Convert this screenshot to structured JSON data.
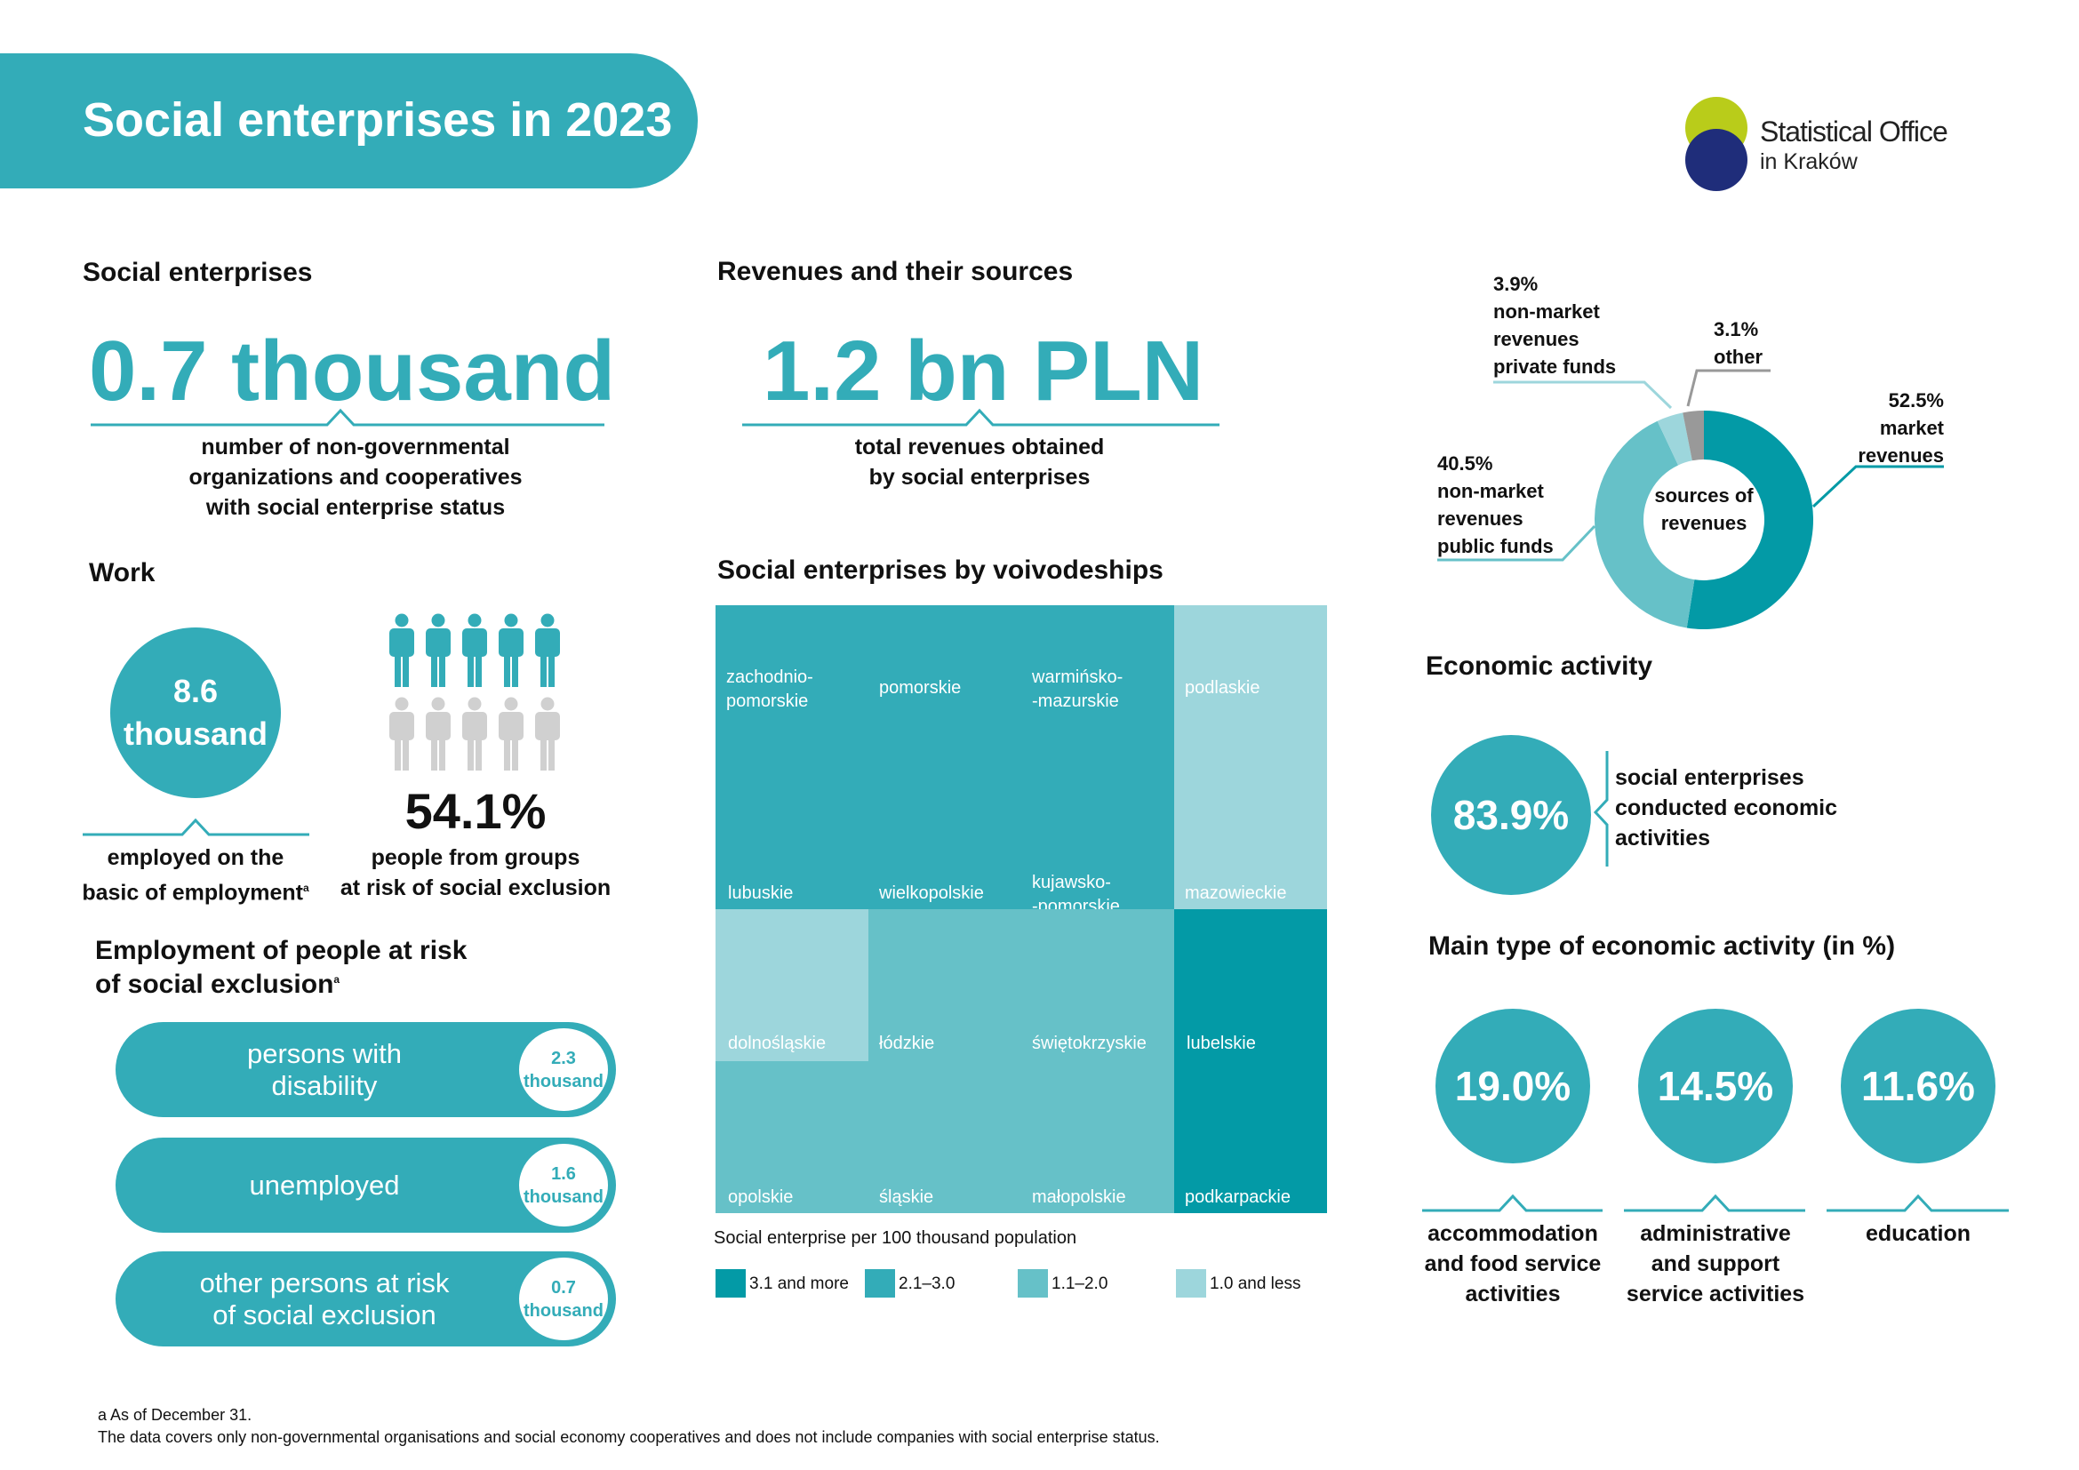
{
  "title": "Social enterprises in 2023",
  "logo": {
    "line1": "Statistical Office",
    "line2": "in Kraków"
  },
  "social": {
    "heading": "Social enterprises",
    "value": "0.7 thousand",
    "desc": [
      "number of non-governmental",
      "organizations and cooperatives",
      "with social enterprise status"
    ]
  },
  "work": {
    "heading": "Work",
    "circle_value": "8.6",
    "circle_unit": "thousand",
    "employed": [
      "employed on the",
      "basic of employment"
    ],
    "footnote_mark": "a",
    "percent": "54.1%",
    "percent_value": 54.1,
    "people": [
      "people from groups",
      "at risk of social exclusion"
    ]
  },
  "risk": {
    "heading": [
      "Employment of people at risk",
      "of social exclusion"
    ],
    "footnote_mark": "a",
    "items": [
      {
        "label": [
          "persons with",
          "disability"
        ],
        "value": "2.3",
        "unit": "thousand"
      },
      {
        "label": [
          "unemployed"
        ],
        "value": "1.6",
        "unit": "thousand"
      },
      {
        "label": [
          "other persons at risk",
          "of social exclusion"
        ],
        "value": "0.7",
        "unit": "thousand"
      }
    ]
  },
  "revenues": {
    "heading": "Revenues and their sources",
    "value": "1.2 bn PLN",
    "desc": [
      "total revenues obtained",
      "by social enterprises"
    ]
  },
  "voivodeships": {
    "heading": "Social enterprises by voivodeships",
    "legend_title": "Social enterprise per 100 thousand population",
    "legend": [
      {
        "label": "3.1 and more",
        "color": "#039aa6"
      },
      {
        "label": "2.1–3.0",
        "color": "#33acb8"
      },
      {
        "label": "1.1–2.0",
        "color": "#66c1c8"
      },
      {
        "label": "1.0 and less",
        "color": "#9dd6dc"
      }
    ],
    "cells": [
      {
        "name": "zachodnio-\npomorskie",
        "class": 1
      },
      {
        "name": "pomorskie",
        "class": 1
      },
      {
        "name": "warmińsko-\n-mazurskie",
        "class": 1
      },
      {
        "name": "podlaskie",
        "class": 3
      },
      {
        "name": "lubuskie",
        "class": 1
      },
      {
        "name": "wielkopolskie",
        "class": 1
      },
      {
        "name": "kujawsko-\n-pomorskie",
        "class": 1
      },
      {
        "name": "mazowieckie",
        "class": 3
      },
      {
        "name": "dolnośląskie",
        "class": 3
      },
      {
        "name": "łódzkie",
        "class": 2
      },
      {
        "name": "świętokrzyskie",
        "class": 2
      },
      {
        "name": "lubelskie",
        "class": 0
      },
      {
        "name": "opolskie",
        "class": 2
      },
      {
        "name": "śląskie",
        "class": 2
      },
      {
        "name": "małopolskie",
        "class": 2
      },
      {
        "name": "podkarpackie",
        "class": 0
      }
    ]
  },
  "chart_data": {
    "type": "pie",
    "center_label": "sources of revenues",
    "slices": [
      {
        "name": "market revenues",
        "value": 52.5,
        "label": "52.5%",
        "color": "#039aa6"
      },
      {
        "name": "non-market revenues public funds",
        "value": 40.5,
        "label": "40.5%",
        "color": "#66c1c8"
      },
      {
        "name": "non-market revenues private funds",
        "value": 3.9,
        "label": "3.9%",
        "color": "#9dd6dc"
      },
      {
        "name": "other",
        "value": 3.1,
        "label": "3.1%",
        "color": "#999999"
      }
    ]
  },
  "donut_labels": {
    "market": [
      "52.5%",
      "market",
      "revenues"
    ],
    "public": [
      "40.5%",
      "non-market",
      "revenues",
      "public funds"
    ],
    "private": [
      "3.9%",
      "non-market",
      "revenues",
      "private funds"
    ],
    "other": [
      "3.1%",
      "other"
    ]
  },
  "economic": {
    "heading": "Economic activity",
    "value": "83.9%",
    "desc": [
      "social enterprises",
      "conducted economic",
      "activities"
    ]
  },
  "main_type": {
    "heading": "Main type of economic activity (in %)",
    "items": [
      {
        "value": "19.0%",
        "label": [
          "accommodation",
          "and food service",
          "activities"
        ]
      },
      {
        "value": "14.5%",
        "label": [
          "administrative",
          "and support",
          "service activities"
        ]
      },
      {
        "value": "11.6%",
        "label": [
          "education"
        ]
      }
    ]
  },
  "footnotes": [
    "a As of December 31.",
    "The data covers only non-governmental organisations and social economy cooperatives and does not include companies with social enterprise status."
  ],
  "colors": {
    "accent": "#33acb8",
    "dark": "#039aa6",
    "light": "#66c1c8",
    "lightest": "#9dd6dc",
    "person_gray": "#d0d0d0"
  }
}
